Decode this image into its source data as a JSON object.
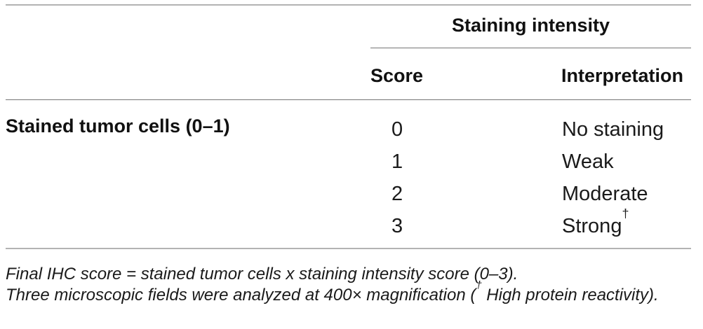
{
  "colors": {
    "background": "#ffffff",
    "text": "#1a1a1a",
    "rule_thick_gray": "#b3b3b3",
    "rule_thin_gray": "#757575"
  },
  "table": {
    "header": {
      "group_label": "Staining intensity",
      "col_score": "Score",
      "col_interpretation": "Interpretation"
    },
    "row_group_label": "Stained tumor cells (0–1)",
    "rows": [
      {
        "score": "0",
        "interpretation": "No staining",
        "sup": ""
      },
      {
        "score": "1",
        "interpretation": "Weak",
        "sup": ""
      },
      {
        "score": "2",
        "interpretation": "Moderate",
        "sup": ""
      },
      {
        "score": "3",
        "interpretation": "Strong",
        "sup": "†"
      }
    ],
    "footnotes": {
      "line1": "Final IHC score = stained tumor cells x staining intensity score (0–3).",
      "line2": {
        "pre": "Three microscopic fields were analyzed at 400× magnification (",
        "sup": "†",
        "post": " High protein reactivity)."
      }
    }
  }
}
